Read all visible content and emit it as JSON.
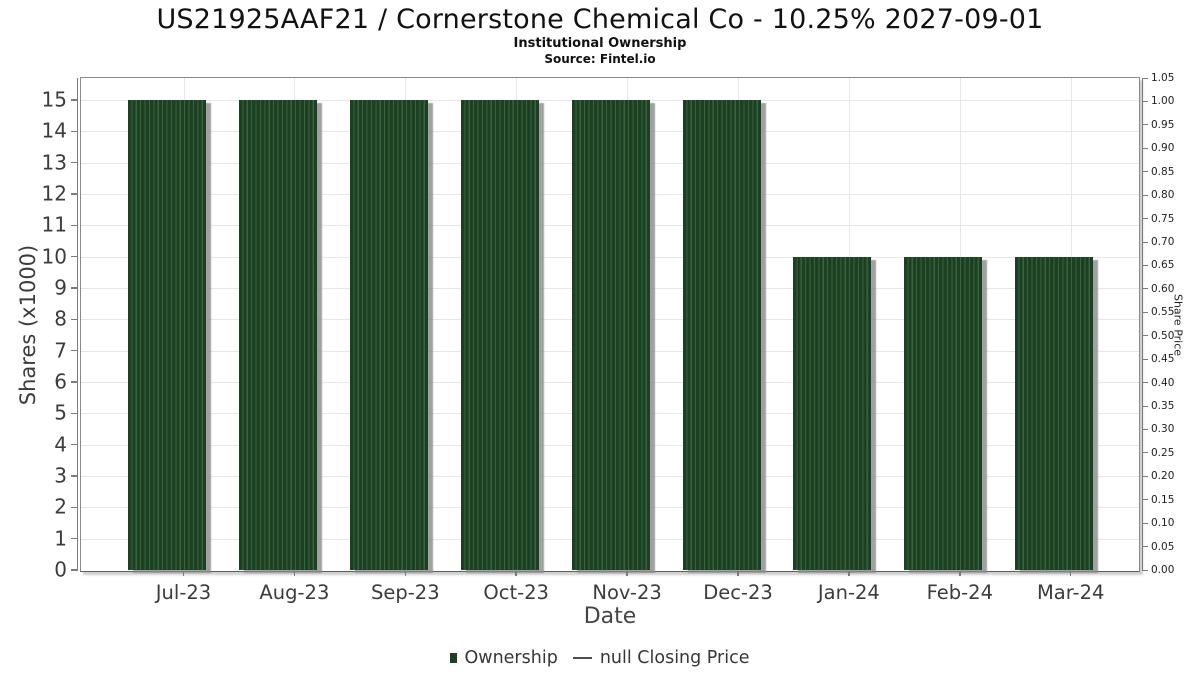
{
  "header": {
    "title": "US21925AAF21 / Cornerstone Chemical Co - 10.25% 2027-09-01",
    "subtitle": "Institutional Ownership",
    "source": "Source: Fintel.io"
  },
  "colors": {
    "bar_base": "#1d4023",
    "bar_stripe": "#376340",
    "bar_shadow": "#8a8a8a",
    "grid": "#e7e7e7",
    "plot_border": "#8a8a8a",
    "axis_line": "#7b7b7b",
    "tick_text": "#3c3c3c",
    "legend_line": "#4c4c4c"
  },
  "chart_data": {
    "type": "bar",
    "title": "US21925AAF21 / Cornerstone Chemical Co - 10.25% 2027-09-01",
    "subtitle": "Institutional Ownership",
    "source": "Source: Fintel.io",
    "categories": [
      "Jul-23",
      "Aug-23",
      "Sep-23",
      "Oct-23",
      "Nov-23",
      "Dec-23",
      "Jan-24",
      "Feb-24",
      "Mar-24"
    ],
    "series": [
      {
        "name": "Ownership",
        "type": "bar",
        "axis": "left",
        "unit": "shares x1000",
        "values": [
          15,
          15,
          15,
          15,
          15,
          15,
          10,
          10,
          10
        ],
        "color": "#1d4023"
      },
      {
        "name": "null Closing Price",
        "type": "line",
        "axis": "right",
        "values": [
          null,
          null,
          null,
          null,
          null,
          null,
          null,
          null,
          null
        ],
        "color": "#4c4c4c"
      }
    ],
    "xlabel": "Date",
    "ylabel_left": "Shares (x1000)",
    "ylabel_right": "Share Price",
    "ylim_left": [
      0,
      15.7
    ],
    "ylim_right": [
      0,
      1.05
    ],
    "yticks_left": [
      "0",
      "1",
      "2",
      "3",
      "4",
      "5",
      "6",
      "7",
      "8",
      "9",
      "10",
      "11",
      "12",
      "13",
      "14",
      "15"
    ],
    "yticks_right": [
      "0.00",
      "0.05",
      "0.10",
      "0.15",
      "0.20",
      "0.25",
      "0.30",
      "0.35",
      "0.40",
      "0.45",
      "0.50",
      "0.55",
      "0.60",
      "0.65",
      "0.70",
      "0.75",
      "0.80",
      "0.85",
      "0.90",
      "0.95",
      "1.00",
      "1.05"
    ],
    "grid": true,
    "legend_position": "bottom"
  }
}
